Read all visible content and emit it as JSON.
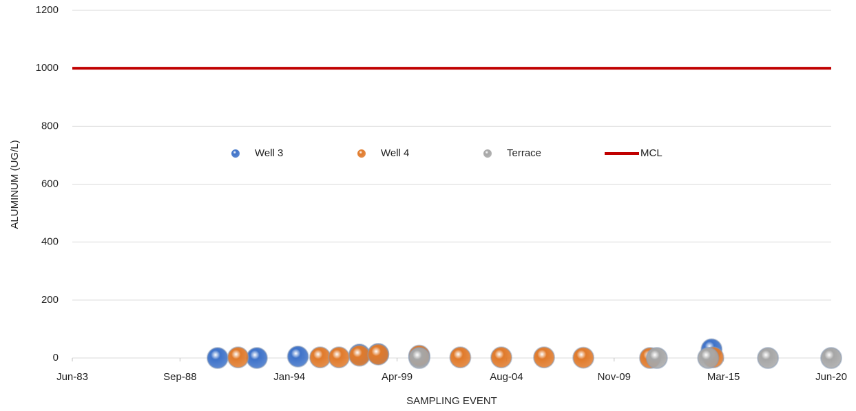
{
  "chart_data": {
    "type": "scatter",
    "y_label": "ALUMINUM (UG/L)",
    "x_label": "SAMPLING EVENT",
    "xlim": [
      "1983-06",
      "2020-06"
    ],
    "xticks": [
      {
        "value": "1983-06",
        "label": "Jun-83"
      },
      {
        "value": "1988-09",
        "label": "Sep-88"
      },
      {
        "value": "1994-01",
        "label": "Jan-94"
      },
      {
        "value": "1999-04",
        "label": "Apr-99"
      },
      {
        "value": "2004-08",
        "label": "Aug-04"
      },
      {
        "value": "2009-11",
        "label": "Nov-09"
      },
      {
        "value": "2015-03",
        "label": "Mar-15"
      },
      {
        "value": "2020-06",
        "label": "Jun-20"
      }
    ],
    "ylim": [
      0,
      1200
    ],
    "yticks": [
      0,
      200,
      400,
      600,
      800,
      1000,
      1200
    ],
    "grid": true,
    "legend": "top",
    "series": [
      {
        "name": "Well 3",
        "color": "#3f73c9",
        "x": [
          "1990-07",
          "1992-06",
          "1994-06",
          "1997-06",
          "1998-05",
          "2000-05",
          "2014-08"
        ],
        "values": [
          0,
          0,
          5,
          12,
          14,
          5,
          30
        ]
      },
      {
        "name": "Well 4",
        "color": "#e07a2b",
        "x": [
          "1991-07",
          "1995-07",
          "1996-06",
          "1997-06",
          "1998-05",
          "2000-05",
          "2002-05",
          "2004-05",
          "2006-06",
          "2008-05",
          "2011-08",
          "2014-09"
        ],
        "values": [
          2,
          2,
          2,
          8,
          12,
          8,
          2,
          2,
          2,
          1,
          0,
          2
        ]
      },
      {
        "name": "Terrace",
        "color": "#a6a6a6",
        "x": [
          "2000-05",
          "2011-12",
          "2014-06",
          "2017-05",
          "2020-06"
        ],
        "values": [
          0,
          0,
          0,
          0,
          0
        ]
      },
      {
        "name": "MCL",
        "color": "#c00000",
        "type": "line",
        "x": [
          "1983-06",
          "2020-06"
        ],
        "values": [
          1000,
          1000
        ]
      }
    ]
  }
}
